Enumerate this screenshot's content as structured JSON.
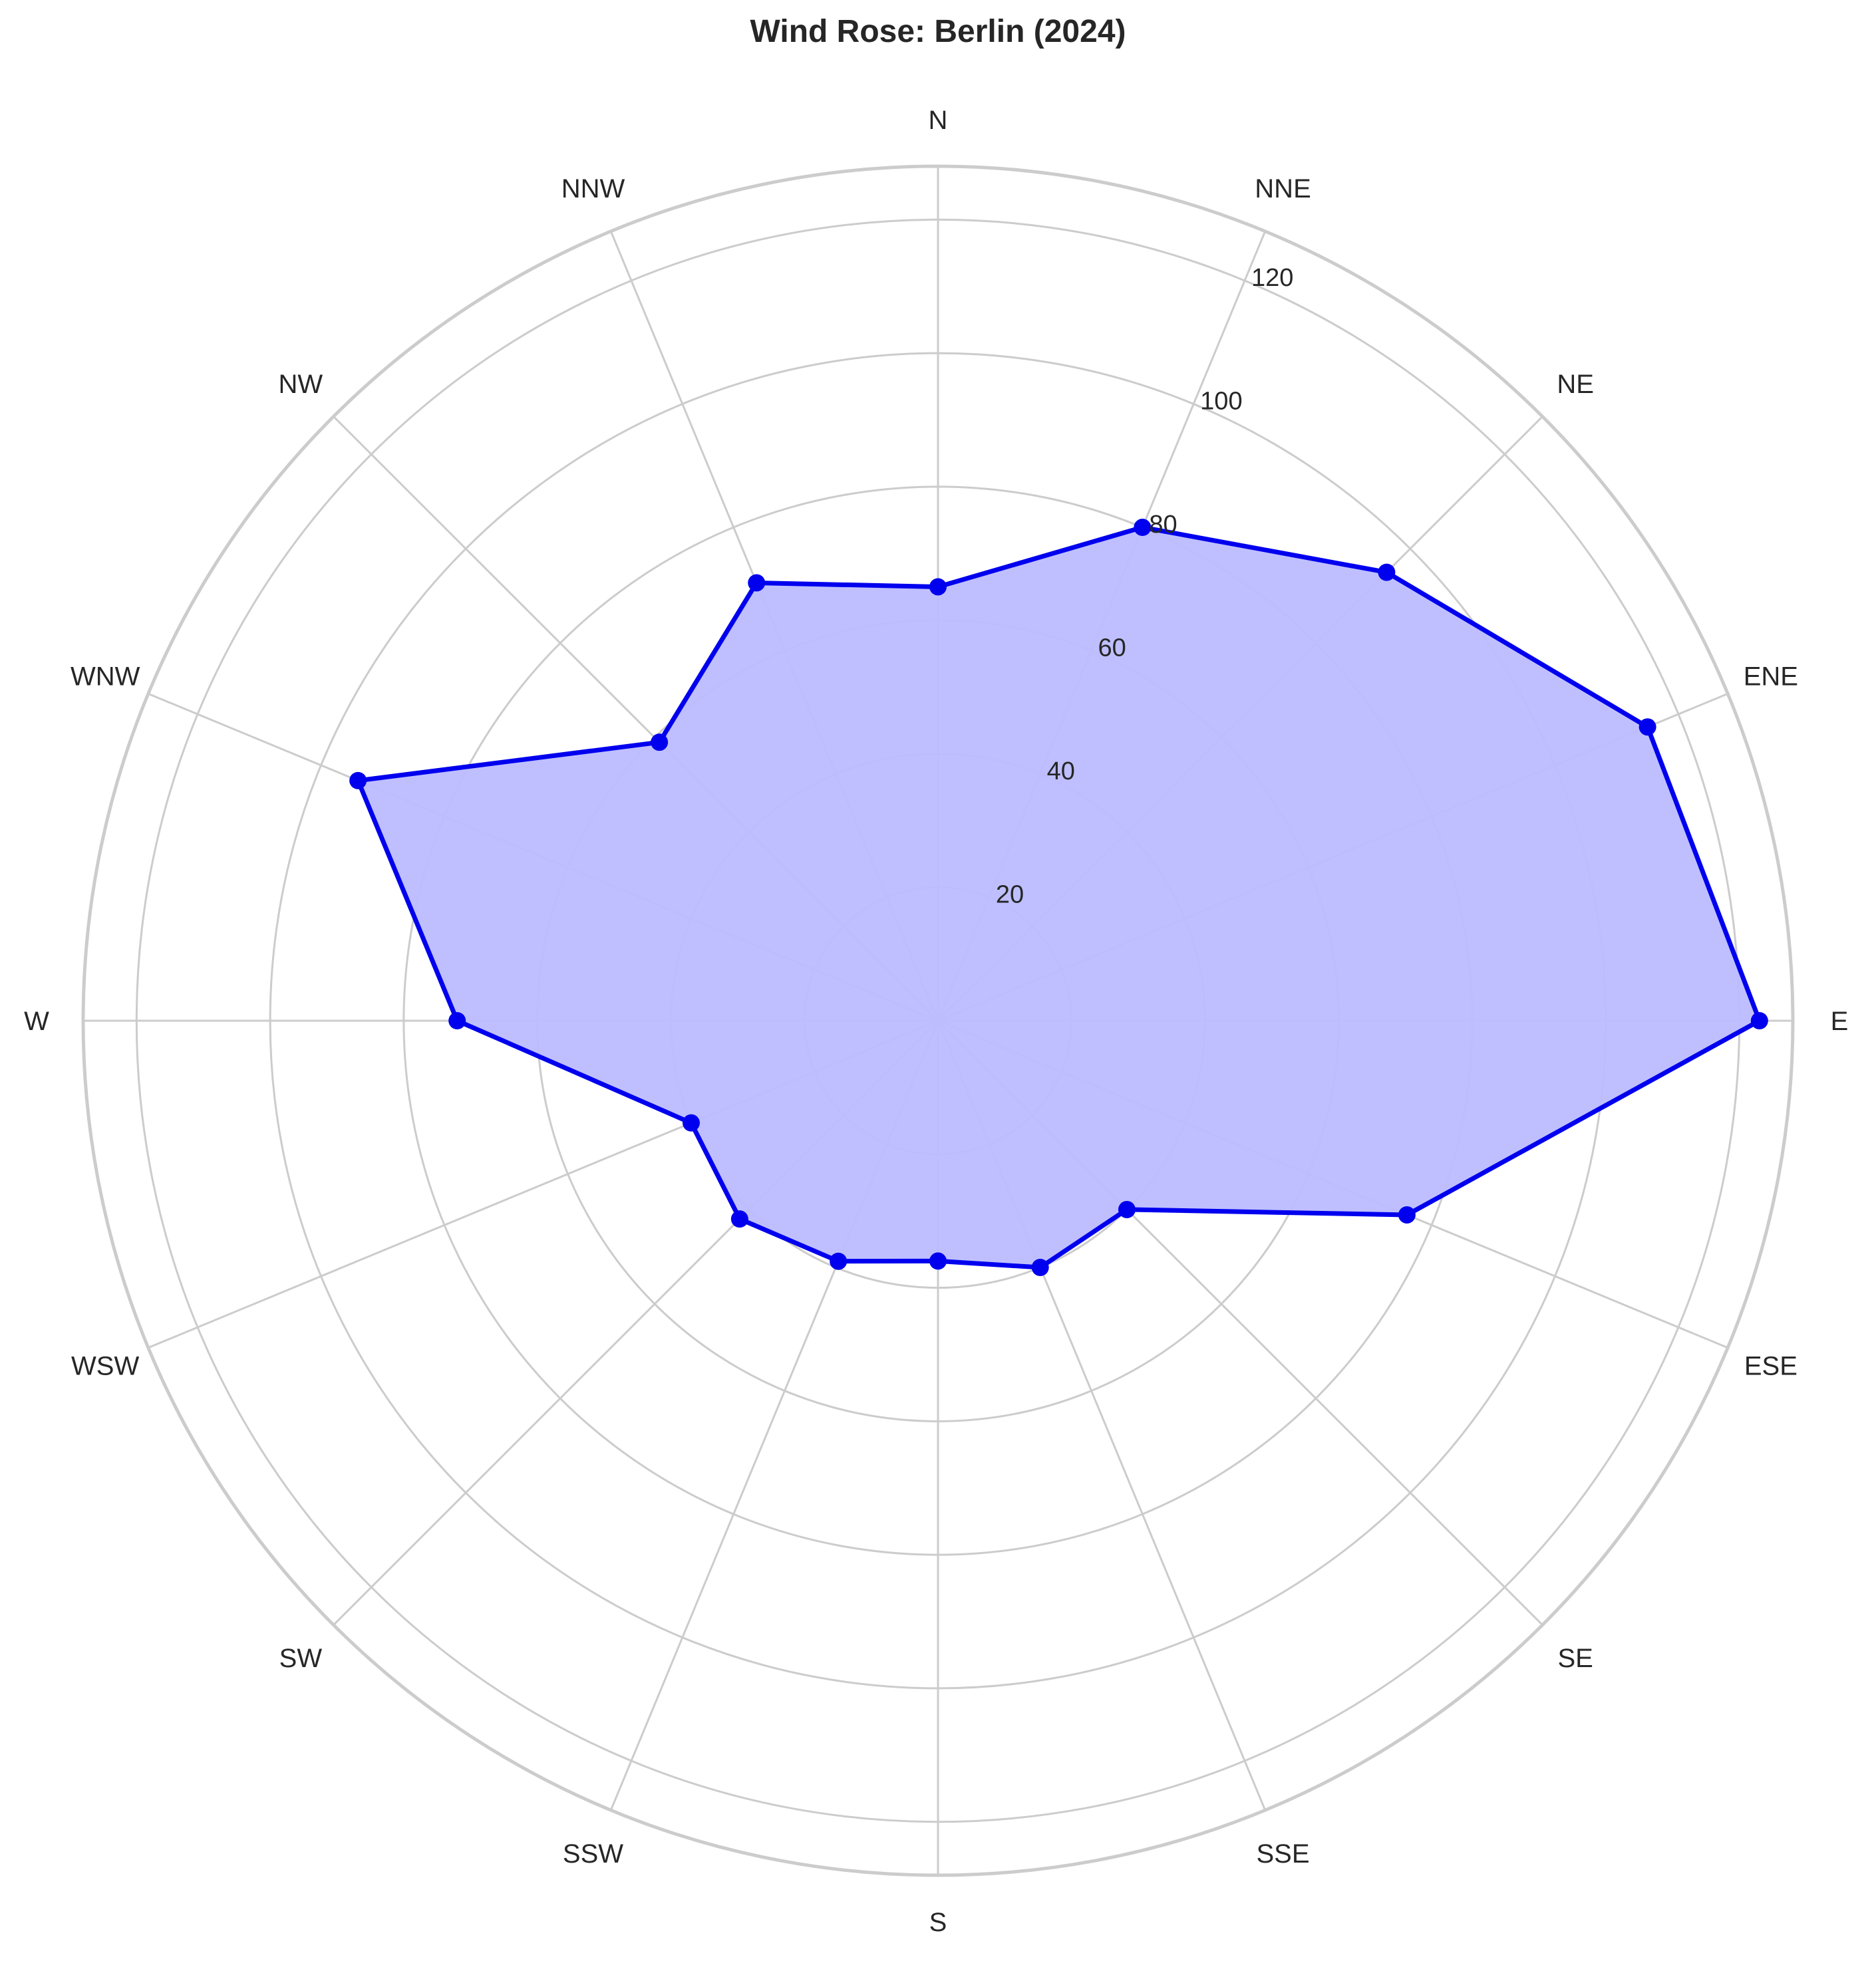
{
  "chart_data": {
    "type": "radar",
    "title": "Wind Rose: Berlin (2024)",
    "directions": [
      "N",
      "NNE",
      "NE",
      "ENE",
      "E",
      "ESE",
      "SE",
      "SSE",
      "S",
      "SSW",
      "SW",
      "WSW",
      "W",
      "WNW",
      "NW",
      "NNW"
    ],
    "values": [
      65,
      80,
      95,
      115,
      123,
      76,
      40,
      40,
      36,
      39,
      42,
      40,
      72,
      94,
      59,
      71
    ],
    "r_ticks": [
      20,
      40,
      60,
      80,
      100,
      120
    ],
    "r_tick_labels": [
      "20",
      "40",
      "60",
      "80",
      "100",
      "120"
    ],
    "r_max": 128,
    "grid": true,
    "colors": {
      "line": "#0000ee",
      "fill": "#bcbcff",
      "grid": "#cccccc",
      "outer": "#cccccc"
    }
  }
}
